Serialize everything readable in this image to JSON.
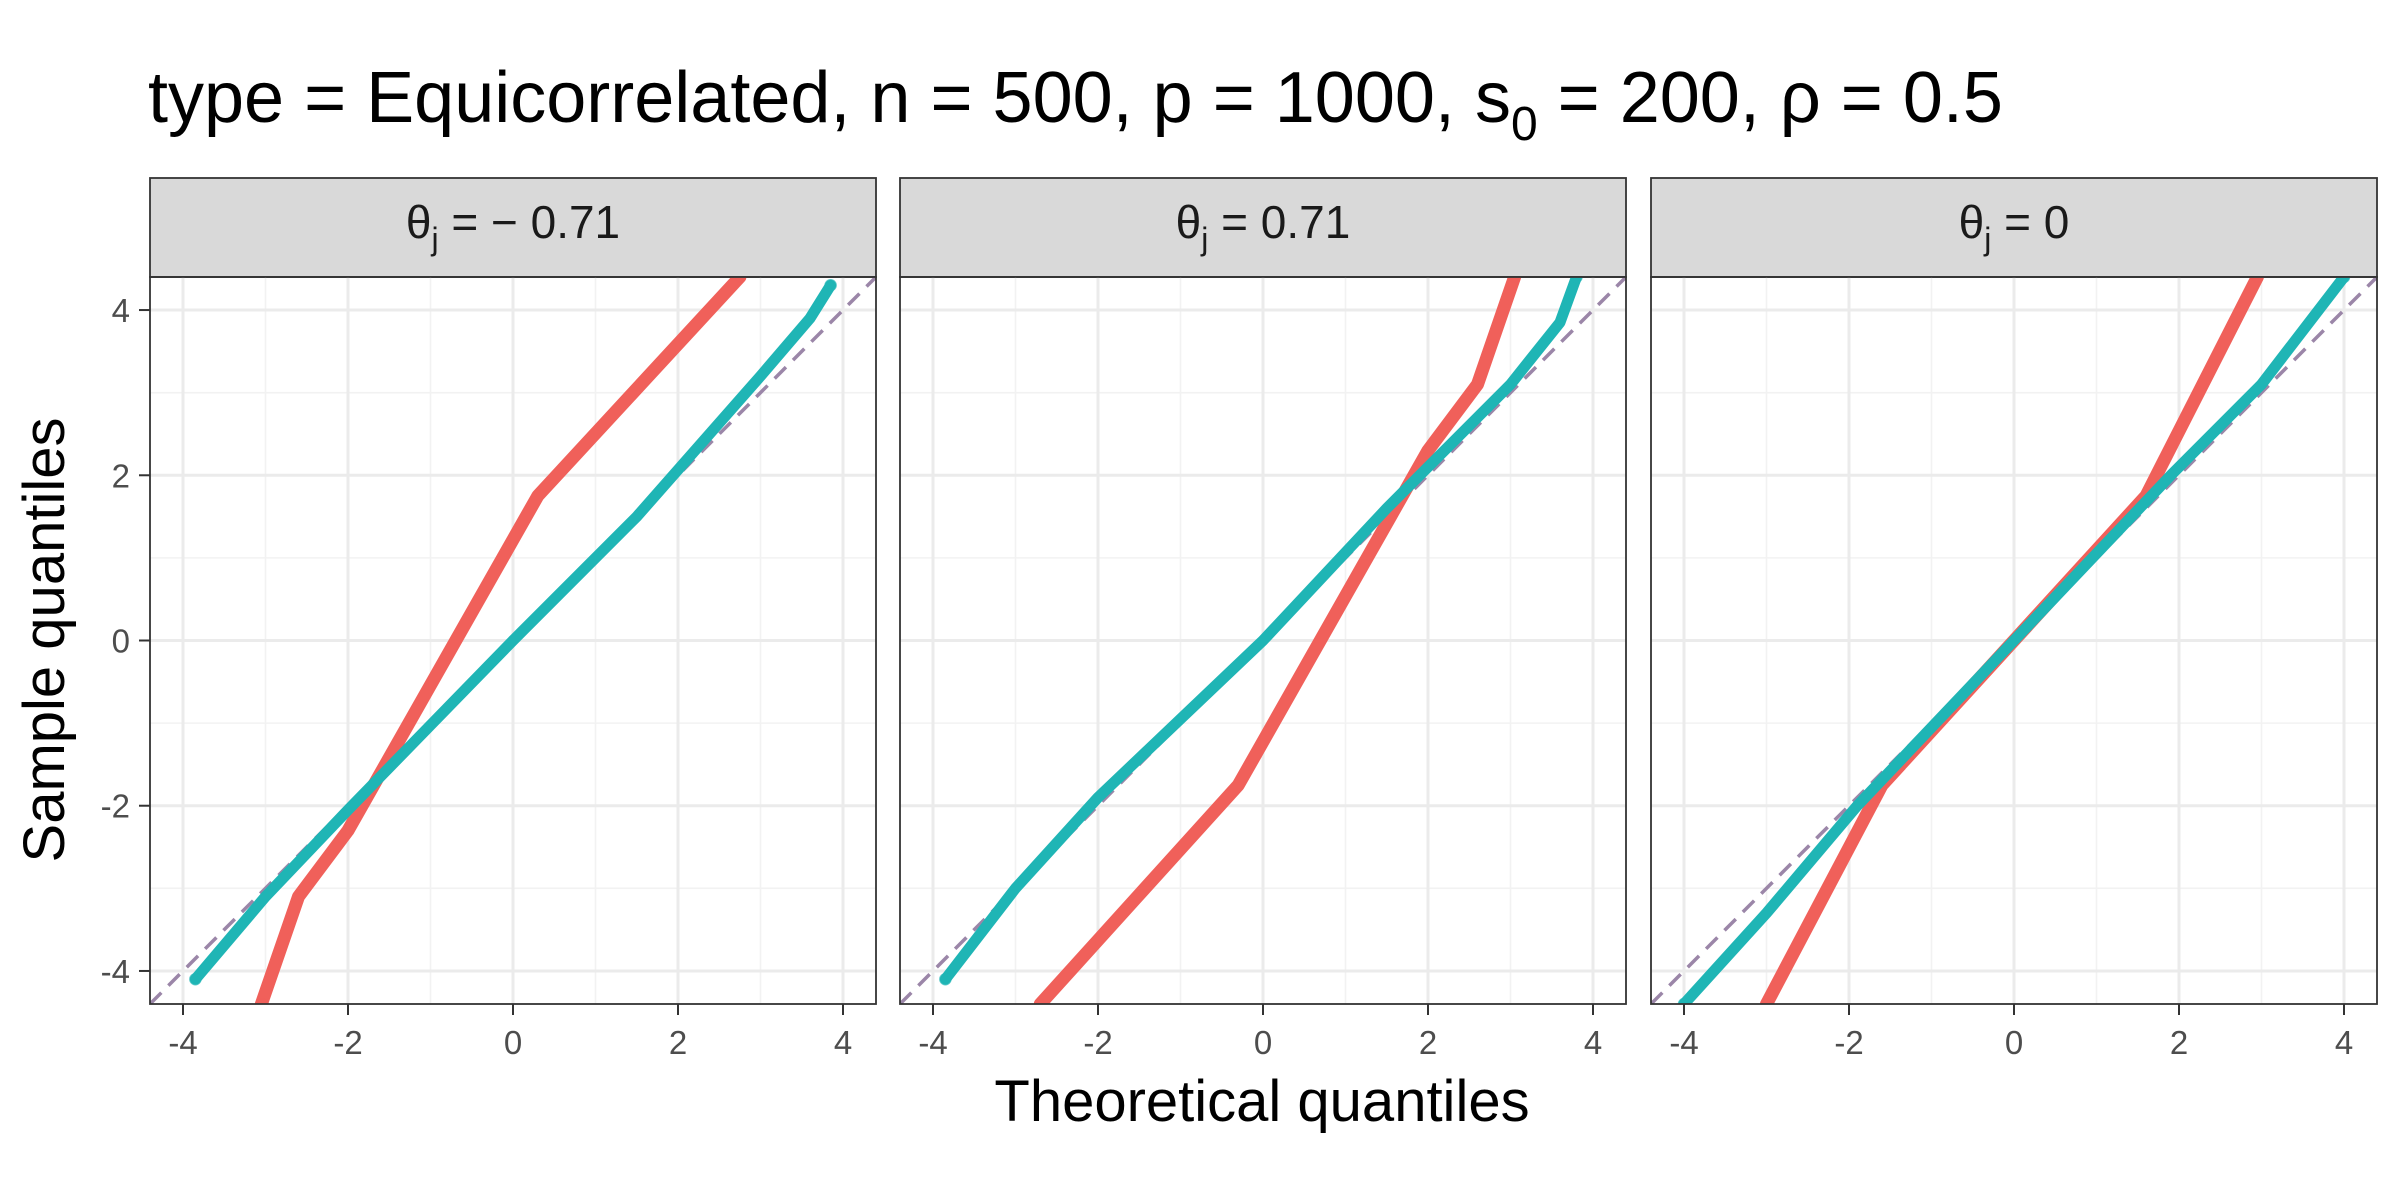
{
  "chart_data": {
    "type": "scatter",
    "title": {
      "prefix": "type = Equicorrelated, n = 500, p = 1000, s",
      "sub": "0",
      "suffix": " = 200, ρ = 0.5"
    },
    "xlabel": "Theoretical quantiles",
    "ylabel": "Sample quantiles",
    "xlim": [
      -4.4,
      4.4
    ],
    "ylim": [
      -4.4,
      4.4
    ],
    "x_ticks": [
      -4,
      -2,
      0,
      2,
      4
    ],
    "y_ticks": [
      -4,
      -2,
      0,
      2,
      4
    ],
    "x_tick_labels": [
      "-4",
      "-2",
      "0",
      "2",
      "4"
    ],
    "y_tick_labels": [
      "-4",
      "-2",
      "0",
      "2",
      "4"
    ],
    "grid": true,
    "reference_line": {
      "slope": 1,
      "intercept": 0,
      "color": "#9b86a8",
      "style": "dashed"
    },
    "colors": {
      "red": "#f0605a",
      "teal": "#1fb5b5",
      "strip_fill": "#d9d9d9",
      "border": "#333333"
    },
    "panels": [
      {
        "strip": {
          "greek": "θ",
          "sub": "j",
          "rest": " = − 0.71"
        },
        "series": [
          {
            "color": "#f0605a",
            "points": [
              [
                -3.05,
                -4.4
              ],
              [
                -2.6,
                -3.1
              ],
              [
                -2.0,
                -2.3
              ],
              [
                0.3,
                1.75
              ],
              [
                2.75,
                4.4
              ]
            ]
          },
          {
            "color": "#1fb5b5",
            "points": [
              [
                -3.85,
                -4.1
              ],
              [
                -3.0,
                -3.1
              ],
              [
                -2.0,
                -2.05
              ],
              [
                0.0,
                0.0
              ],
              [
                1.5,
                1.5
              ],
              [
                3.0,
                3.2
              ],
              [
                3.6,
                3.9
              ],
              [
                3.85,
                4.3
              ]
            ]
          }
        ]
      },
      {
        "strip": {
          "greek": "θ",
          "sub": "j",
          "rest": " = 0.71"
        },
        "series": [
          {
            "color": "#f0605a",
            "points": [
              [
                -2.7,
                -4.4
              ],
              [
                -0.3,
                -1.75
              ],
              [
                2.0,
                2.3
              ],
              [
                2.6,
                3.1
              ],
              [
                3.05,
                4.4
              ]
            ]
          },
          {
            "color": "#1fb5b5",
            "points": [
              [
                -3.85,
                -4.1
              ],
              [
                -3.0,
                -3.0
              ],
              [
                -2.0,
                -1.9
              ],
              [
                0.0,
                0.0
              ],
              [
                1.5,
                1.6
              ],
              [
                3.0,
                3.1
              ],
              [
                3.6,
                3.85
              ],
              [
                3.8,
                4.4
              ]
            ]
          }
        ]
      },
      {
        "strip": {
          "greek": "θ",
          "sub": "j",
          "rest": " = 0"
        },
        "series": [
          {
            "color": "#f0605a",
            "points": [
              [
                -3.0,
                -4.4
              ],
              [
                -1.6,
                -1.75
              ],
              [
                1.6,
                1.75
              ],
              [
                2.95,
                4.4
              ]
            ]
          },
          {
            "color": "#1fb5b5",
            "points": [
              [
                -4.0,
                -4.4
              ],
              [
                -3.0,
                -3.3
              ],
              [
                -1.9,
                -2.0
              ],
              [
                0.0,
                0.0
              ],
              [
                1.9,
                2.0
              ],
              [
                3.0,
                3.1
              ],
              [
                4.0,
                4.4
              ]
            ]
          }
        ]
      }
    ]
  }
}
